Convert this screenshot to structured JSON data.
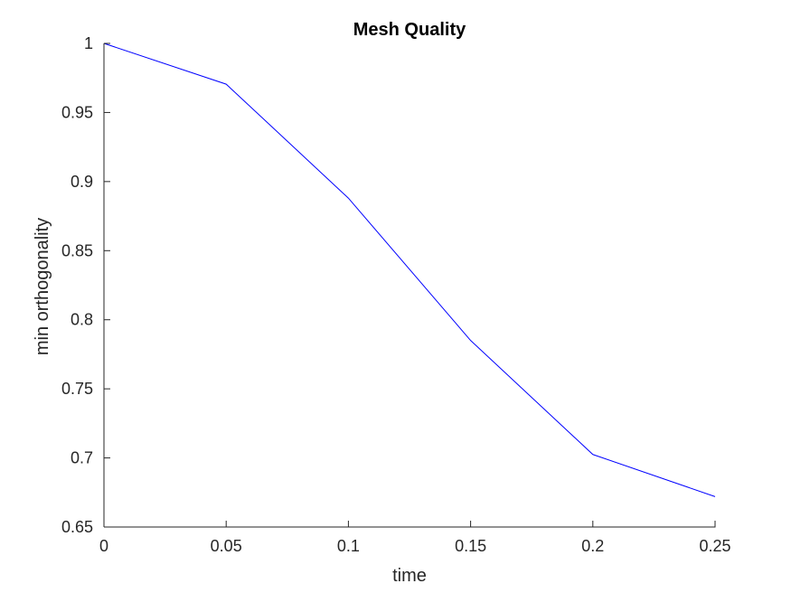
{
  "chart_data": {
    "type": "line",
    "title": "Mesh Quality",
    "xlabel": "time",
    "ylabel": "min orthogonality",
    "xlim": [
      0,
      0.25
    ],
    "ylim": [
      0.65,
      1
    ],
    "xticks": [
      0,
      0.05,
      0.1,
      0.15,
      0.2,
      0.25
    ],
    "xtick_labels": [
      "0",
      "0.05",
      "0.1",
      "0.15",
      "0.2",
      "0.25"
    ],
    "yticks": [
      0.65,
      0.7,
      0.75,
      0.8,
      0.85,
      0.9,
      0.95,
      1
    ],
    "ytick_labels": [
      "0.65",
      "0.7",
      "0.75",
      "0.8",
      "0.85",
      "0.9",
      "0.95",
      "1"
    ],
    "grid": false,
    "box": "axes on left and bottom only",
    "series": [
      {
        "color": "#0000ff",
        "x": [
          0,
          0.05,
          0.1,
          0.15,
          0.2,
          0.25
        ],
        "y": [
          1.0,
          0.9705,
          0.888,
          0.785,
          0.7025,
          0.672
        ]
      }
    ]
  }
}
